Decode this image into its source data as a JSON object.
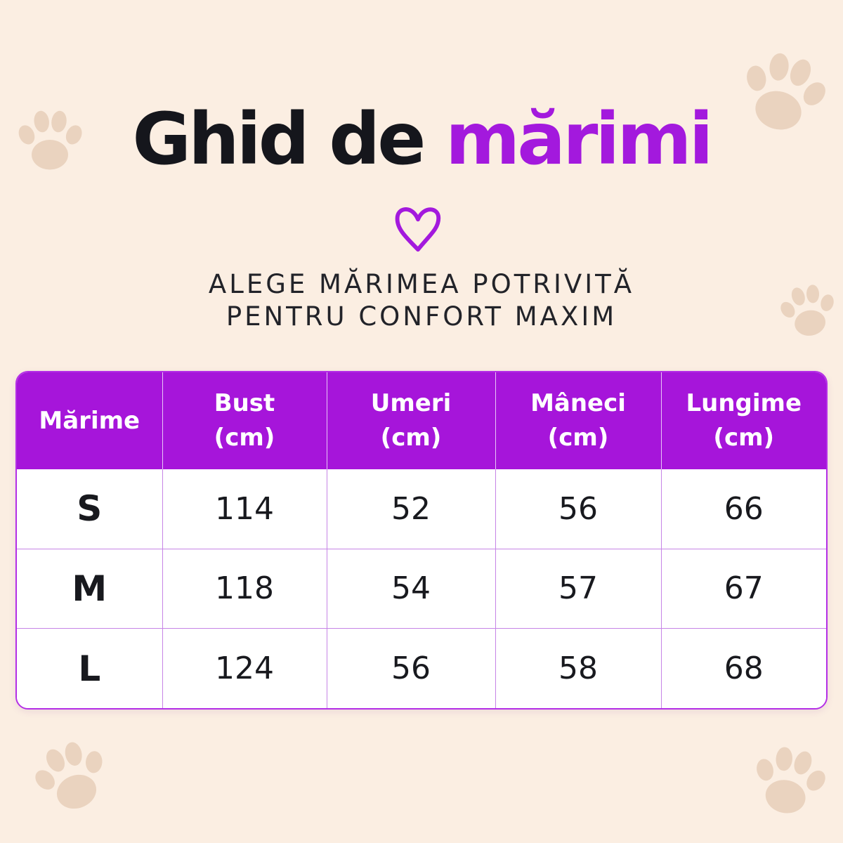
{
  "title": {
    "part1": "Ghid de",
    "part2": "mărimi"
  },
  "subtitle": {
    "line1": "ALEGE MĂRIMEA POTRIVITĂ",
    "line2": "PENTRU CONFORT MAXIM"
  },
  "colors": {
    "background": "#fbeee2",
    "accent": "#a615da",
    "text": "#15161c",
    "paw": "#e9d2bd"
  },
  "icons": {
    "heart": "heart-icon",
    "paw": "paw-print-icon"
  },
  "table": {
    "headers": [
      {
        "line1": "Mărime",
        "line2": ""
      },
      {
        "line1": "Bust",
        "line2": "(cm)"
      },
      {
        "line1": "Umeri",
        "line2": "(cm)"
      },
      {
        "line1": "Mâneci",
        "line2": "(cm)"
      },
      {
        "line1": "Lungime",
        "line2": "(cm)"
      }
    ],
    "rows": [
      [
        "S",
        "114",
        "52",
        "56",
        "66"
      ],
      [
        "M",
        "118",
        "54",
        "57",
        "67"
      ],
      [
        "L",
        "124",
        "56",
        "58",
        "68"
      ]
    ]
  }
}
